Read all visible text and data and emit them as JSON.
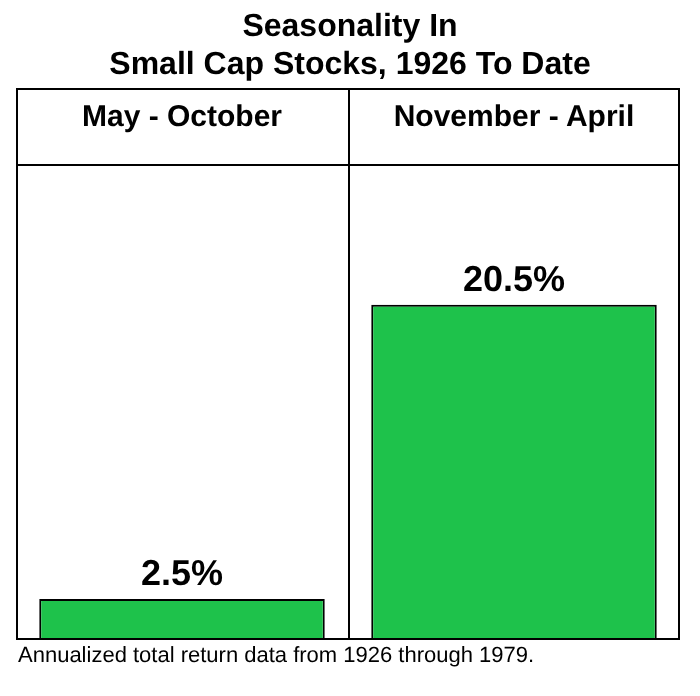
{
  "chart_data": {
    "type": "bar",
    "title": "Seasonality In\nSmall Cap Stocks, 1926 To Date",
    "categories": [
      "May - October",
      "November - April"
    ],
    "values": [
      2.5,
      20.5
    ],
    "value_labels": [
      "2.5%",
      "20.5%"
    ],
    "color": "#1ec24b",
    "annotations": [
      "Annualized total return data from 1926 through 1979."
    ]
  }
}
